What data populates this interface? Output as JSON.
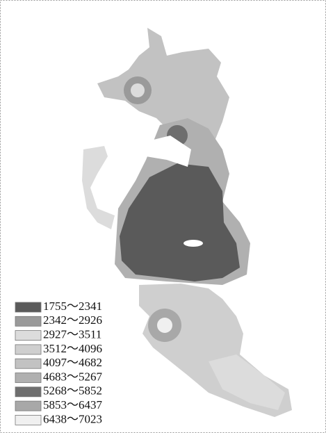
{
  "legend": {
    "items": [
      {
        "label": "1755～2341",
        "color": "#5a5a5a"
      },
      {
        "label": "2342～2926",
        "color": "#9a9a9a"
      },
      {
        "label": "2927～3511",
        "color": "#dcdcdc"
      },
      {
        "label": "3512～4096",
        "color": "#cfcfcf"
      },
      {
        "label": "4097～4682",
        "color": "#c2c2c2"
      },
      {
        "label": "4683～5267",
        "color": "#b0b0b0"
      },
      {
        "label": "5268～5852",
        "color": "#6e6e6e"
      },
      {
        "label": "5853～6437",
        "color": "#a8a8a8"
      },
      {
        "label": "6438～7023",
        "color": "#f0f0f0"
      }
    ]
  }
}
